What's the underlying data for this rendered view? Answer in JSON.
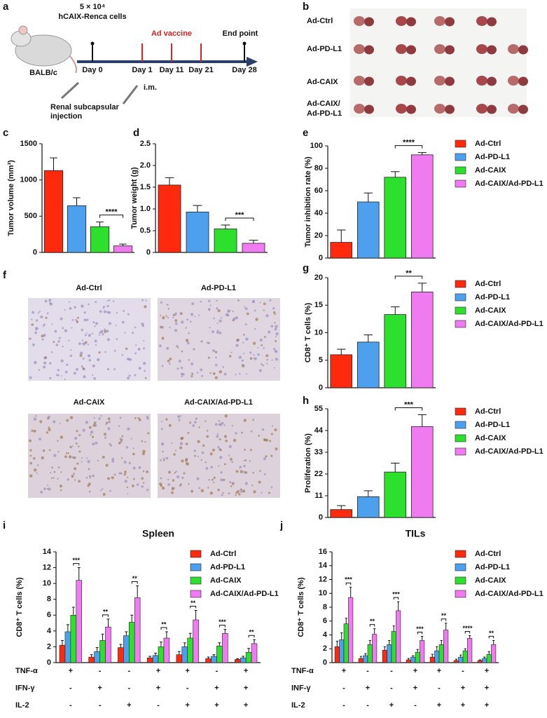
{
  "panel_a": {
    "label": "a",
    "cells_count": "5 × 10⁴",
    "cells": "hCAIX-Renca cells",
    "vaccine": "Ad vaccine",
    "end": "End point",
    "days": [
      "Day 0",
      "Day 1",
      "Day 11",
      "Day 21",
      "Day 28"
    ],
    "strain": "BALB/c",
    "route": "i.m.",
    "injection": [
      "Renal subcapsular",
      "injection"
    ]
  },
  "panel_b": {
    "label": "b",
    "groups": [
      [
        "Ad-Ctrl"
      ],
      [
        "Ad-PD-L1"
      ],
      [
        "Ad-CAIX"
      ],
      [
        "Ad-CAIX/",
        "Ad-PD-L1"
      ]
    ]
  },
  "panel_f": {
    "label": "f",
    "titles": [
      "Ad-Ctrl",
      "Ad-PD-L1",
      "Ad-CAIX",
      "Ad-CAIX/Ad-PD-L1"
    ]
  },
  "chart_data": [
    {
      "type": "bar",
      "panel": "c",
      "y_label": "Tumor volume (mm³)",
      "values": [
        1130,
        645,
        355,
        90
      ],
      "errors": [
        175,
        110,
        65,
        25
      ],
      "colors": [
        "#ff2a0e",
        "#4da0ee",
        "#2ee02e",
        "#f07af0"
      ],
      "ylim": [
        0,
        1500
      ],
      "yticks": [
        0,
        500,
        1000,
        1500
      ],
      "annotation": "****"
    },
    {
      "type": "bar",
      "panel": "d",
      "y_label": "Tumor weight (g)",
      "values": [
        1.55,
        0.93,
        0.54,
        0.21
      ],
      "errors": [
        0.17,
        0.15,
        0.09,
        0.07
      ],
      "colors": [
        "#ff2a0e",
        "#4da0ee",
        "#2ee02e",
        "#f07af0"
      ],
      "ylim": [
        0,
        2.5
      ],
      "yticks": [
        0,
        0.5,
        {
          "value": 1,
          "label": "1.0"
        },
        1.5,
        {
          "value": 2,
          "label": "2.0"
        },
        2.5
      ],
      "annotation": "***"
    },
    {
      "type": "bar",
      "panel": "e",
      "y_label": "Tumor inhibition rate (%)",
      "categories": [
        "Ad-Ctrl",
        "Ad-PD-L1",
        "Ad-CAIX",
        "Ad-CAIX/Ad-PD-L1"
      ],
      "values": [
        14,
        50,
        72,
        92
      ],
      "errors": [
        11,
        8,
        5,
        2
      ],
      "colors": [
        "#ff2a0e",
        "#4da0ee",
        "#2ee02e",
        "#f07af0"
      ],
      "ylim": [
        0,
        100
      ],
      "yticks": [
        0,
        20,
        40,
        60,
        80,
        100
      ],
      "annotation": "****"
    },
    {
      "type": "bar",
      "panel": "g",
      "y_label": "CD8⁺ T cells (%)",
      "categories": [
        "Ad-Ctrl",
        "Ad-PD-L1",
        "Ad-CAIX",
        "Ad-CAIX/Ad-PD-L1"
      ],
      "values": [
        6,
        8.3,
        13.3,
        17.4
      ],
      "errors": [
        1,
        1.3,
        1.4,
        1.6
      ],
      "colors": [
        "#ff2a0e",
        "#4da0ee",
        "#2ee02e",
        "#f07af0"
      ],
      "ylim": [
        0,
        20
      ],
      "yticks": [
        0,
        5,
        10,
        15,
        20
      ],
      "annotation": "**"
    },
    {
      "type": "bar",
      "panel": "h",
      "y_label": "Proliferation (%)",
      "categories": [
        "Ad-Ctrl",
        "Ad-PD-L1",
        "Ad-CAIX",
        "Ad-CAIX/Ad-PD-L1"
      ],
      "values": [
        4,
        10.5,
        23,
        46
      ],
      "errors": [
        2,
        3,
        4.5,
        6
      ],
      "colors": [
        "#ff2a0e",
        "#4da0ee",
        "#2ee02e",
        "#f07af0"
      ],
      "ylim": [
        0,
        55
      ],
      "yticks": [
        0,
        11,
        22,
        33,
        44,
        55
      ],
      "annotation": "***"
    },
    {
      "type": "grouped_bar",
      "panel": "i",
      "title": "Spleen",
      "y_label": "CD8⁺ T cells (%)",
      "ylim": [
        0,
        14
      ],
      "yticks": [
        0,
        2,
        4,
        6,
        8,
        10,
        12,
        14
      ],
      "series": [
        {
          "name": "Ad-Ctrl",
          "color": "#ff2a0e",
          "values": [
            2.2,
            0.7,
            1.9,
            0.6,
            1.0,
            0.5,
            0.4
          ],
          "errors": [
            0.6,
            0.3,
            0.4,
            0.2,
            0.4,
            0.2,
            0.1
          ]
        },
        {
          "name": "Ad-PD-L1",
          "color": "#4da0ee",
          "values": [
            3.9,
            1.4,
            3.4,
            0.9,
            2.0,
            0.8,
            0.6
          ],
          "errors": [
            0.9,
            0.5,
            0.5,
            0.3,
            0.5,
            0.2,
            0.2
          ]
        },
        {
          "name": "Ad-CAIX",
          "color": "#2ee02e",
          "values": [
            6.0,
            2.8,
            5.1,
            2.0,
            3.1,
            2.1,
            1.3
          ],
          "errors": [
            1.0,
            0.8,
            0.9,
            0.6,
            0.6,
            0.4,
            0.5
          ]
        },
        {
          "name": "Ad-CAIX/Ad-PD-L1",
          "color": "#f07af0",
          "values": [
            10.4,
            4.5,
            8.2,
            3.1,
            5.4,
            3.7,
            2.4
          ],
          "errors": [
            1.6,
            1.0,
            1.5,
            0.8,
            1.2,
            0.5,
            0.5
          ]
        }
      ],
      "annotations": [
        "***",
        "**",
        "**",
        "**",
        "**",
        "***",
        "**"
      ],
      "conditions": [
        {
          "name": "TNF-α",
          "values": [
            "+",
            "-",
            "-",
            "+",
            "+",
            "-",
            "+"
          ]
        },
        {
          "name": "IFN-γ",
          "values": [
            "-",
            "+",
            "-",
            "+",
            "-",
            "+",
            "+"
          ]
        },
        {
          "name": "IL-2",
          "values": [
            "-",
            "-",
            "+",
            "-",
            "+",
            "+",
            "+"
          ]
        }
      ]
    },
    {
      "type": "grouped_bar",
      "panel": "j",
      "title": "TILs",
      "y_label": "CD8⁺ T cells (%)",
      "ylim": [
        0,
        16
      ],
      "yticks": [
        0,
        2,
        4,
        6,
        8,
        10,
        12,
        14,
        16
      ],
      "series": [
        {
          "name": "Ad-Ctrl",
          "color": "#ff2a0e",
          "values": [
            2.3,
            0.6,
            1.8,
            0.4,
            0.8,
            0.3,
            0.3
          ],
          "errors": [
            0.8,
            0.3,
            0.5,
            0.2,
            0.4,
            0.2,
            0.1
          ]
        },
        {
          "name": "Ad-PD-L1",
          "color": "#4da0ee",
          "values": [
            3.3,
            1.0,
            2.6,
            0.8,
            1.7,
            0.8,
            0.6
          ],
          "errors": [
            1.0,
            0.3,
            0.6,
            0.2,
            0.6,
            0.3,
            0.2
          ]
        },
        {
          "name": "Ad-CAIX",
          "color": "#2ee02e",
          "values": [
            5.6,
            2.6,
            4.5,
            1.5,
            2.6,
            1.7,
            1.2
          ],
          "errors": [
            0.8,
            0.6,
            0.8,
            0.4,
            0.6,
            0.3,
            0.4
          ]
        },
        {
          "name": "Ad-CAIX/Ad-PD-L1",
          "color": "#f07af0",
          "values": [
            9.4,
            4.1,
            7.5,
            3.2,
            4.7,
            3.5,
            2.6
          ],
          "errors": [
            1.5,
            0.8,
            1.3,
            0.6,
            1.0,
            0.4,
            0.6
          ]
        }
      ],
      "annotations": [
        "***",
        "**",
        "***",
        "***",
        "**",
        "****",
        "**"
      ],
      "conditions": [
        {
          "name": "TNF-α",
          "values": [
            "+",
            "-",
            "-",
            "+",
            "+",
            "-",
            "+"
          ]
        },
        {
          "name": "INF-γ",
          "values": [
            "-",
            "+",
            "-",
            "+",
            "-",
            "+",
            "+"
          ]
        },
        {
          "name": "IL-2",
          "values": [
            "-",
            "-",
            "+",
            "-",
            "+",
            "+",
            "+"
          ]
        }
      ]
    }
  ]
}
